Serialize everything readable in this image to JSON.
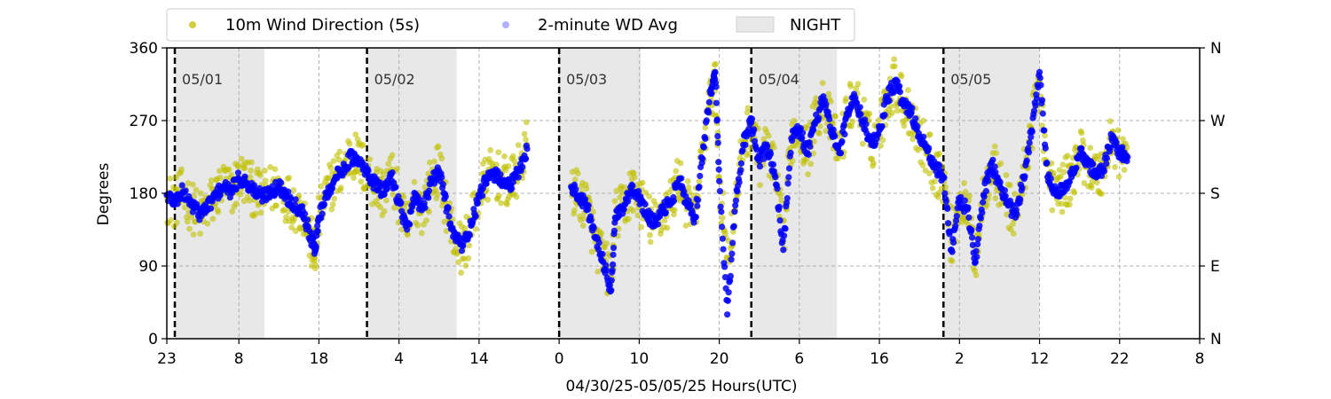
{
  "chart_data": {
    "type": "scatter",
    "xlabel": "04/30/25-05/05/25  Hours(UTC)",
    "ylabel": "Degrees",
    "ylim": [
      0,
      360
    ],
    "y_ticks": [
      0,
      90,
      180,
      270,
      360
    ],
    "y_ticks_right": [
      "N",
      "E",
      "S",
      "W",
      "N"
    ],
    "x_range_hours": [
      0,
      129
    ],
    "x_ticks": [
      {
        "h": 0,
        "label": "23"
      },
      {
        "h": 9,
        "label": "8"
      },
      {
        "h": 19,
        "label": "18"
      },
      {
        "h": 29,
        "label": "4"
      },
      {
        "h": 39,
        "label": "14"
      },
      {
        "h": 49,
        "label": "0"
      },
      {
        "h": 59,
        "label": "10"
      },
      {
        "h": 69,
        "label": "20"
      },
      {
        "h": 79,
        "label": "6"
      },
      {
        "h": 89,
        "label": "16"
      },
      {
        "h": 99,
        "label": "2"
      },
      {
        "h": 109,
        "label": "12"
      },
      {
        "h": 119,
        "label": "22"
      },
      {
        "h": 129,
        "label": "8"
      }
    ],
    "grid": true,
    "legend_position": "top",
    "day_markers": [
      {
        "h": 1,
        "label": "05/01"
      },
      {
        "h": 25,
        "label": "05/02"
      },
      {
        "h": 49,
        "label": "05/03"
      },
      {
        "h": 73,
        "label": "05/04"
      },
      {
        "h": 97,
        "label": "05/05"
      }
    ],
    "night_periods": [
      [
        1,
        12.2
      ],
      [
        25,
        36.2
      ],
      [
        49,
        59.2
      ],
      [
        73,
        83.7
      ],
      [
        97,
        109
      ]
    ],
    "series": [
      {
        "name": "10m Wind Direction (5s)",
        "color": "#bfbf00",
        "marker": "circle",
        "x": [
          0,
          1,
          2,
          3,
          4,
          5,
          6,
          7,
          8,
          9,
          10,
          11,
          12,
          13,
          14,
          15,
          16,
          17,
          18,
          18.5,
          19,
          20,
          21,
          22,
          23,
          24,
          25,
          26,
          27,
          28,
          29,
          30,
          31,
          32,
          33,
          34,
          35,
          36,
          37,
          38,
          39,
          40,
          41,
          42,
          43,
          44,
          45,
          50.5,
          51.5,
          52.5,
          53.5,
          54.5,
          55.5,
          56,
          57,
          58,
          59,
          60,
          61,
          62,
          63,
          64,
          65,
          66,
          67,
          68,
          68.5,
          69,
          70,
          71,
          72,
          73,
          74,
          75,
          76,
          77,
          78,
          79,
          80,
          81,
          82,
          83,
          84,
          85,
          86,
          87,
          88,
          89,
          90,
          91,
          92,
          93,
          94,
          95,
          96,
          97,
          98,
          99,
          100,
          101,
          102,
          103,
          104,
          105,
          106,
          107,
          108,
          109,
          110,
          111,
          112,
          113,
          114,
          115,
          116,
          117,
          118,
          119,
          120
        ],
        "values": [
          175,
          168,
          180,
          165,
          150,
          160,
          175,
          190,
          180,
          200,
          195,
          180,
          175,
          185,
          190,
          175,
          165,
          160,
          120,
          100,
          150,
          180,
          200,
          210,
          230,
          220,
          205,
          190,
          180,
          205,
          170,
          130,
          175,
          160,
          195,
          210,
          160,
          120,
          110,
          140,
          175,
          200,
          205,
          195,
          190,
          210,
          240,
          190,
          175,
          165,
          120,
          100,
          70,
          150,
          160,
          185,
          175,
          150,
          140,
          160,
          170,
          200,
          165,
          150,
          240,
          300,
          320,
          200,
          100,
          160,
          240,
          270,
          220,
          240,
          200,
          120,
          250,
          260,
          230,
          270,
          300,
          260,
          230,
          280,
          300,
          270,
          240,
          260,
          300,
          320,
          290,
          280,
          250,
          230,
          210,
          200,
          120,
          170,
          160,
          100,
          180,
          220,
          190,
          170,
          150,
          200,
          260,
          320,
          200,
          180,
          190,
          200,
          230,
          220,
          200,
          210,
          250,
          230,
          225
        ]
      },
      {
        "name": "2-minute WD Avg",
        "color": "#0000ff",
        "marker": "circle",
        "x": [
          0,
          1,
          2,
          3,
          4,
          5,
          6,
          7,
          8,
          9,
          10,
          11,
          12,
          13,
          14,
          15,
          16,
          17,
          18,
          18.5,
          19,
          20,
          21,
          22,
          23,
          24,
          25,
          26,
          27,
          28,
          29,
          30,
          31,
          32,
          33,
          34,
          35,
          36,
          37,
          38,
          39,
          40,
          41,
          42,
          43,
          44,
          45,
          50.5,
          51.5,
          52.5,
          53.5,
          54.5,
          55.5,
          56,
          57,
          58,
          59,
          60,
          61,
          62,
          63,
          64,
          65,
          66,
          67,
          68,
          68.5,
          69,
          70,
          71,
          72,
          73,
          74,
          75,
          76,
          77,
          78,
          79,
          80,
          81,
          82,
          83,
          84,
          85,
          86,
          87,
          88,
          89,
          90,
          91,
          92,
          93,
          94,
          95,
          96,
          97,
          98,
          99,
          100,
          101,
          102,
          103,
          104,
          105,
          106,
          107,
          108,
          109,
          110,
          111,
          112,
          113,
          114,
          115,
          116,
          117,
          118,
          119,
          120
        ],
        "values": [
          178,
          170,
          182,
          168,
          155,
          162,
          176,
          188,
          182,
          198,
          193,
          182,
          176,
          184,
          188,
          176,
          166,
          158,
          125,
          110,
          150,
          180,
          198,
          210,
          225,
          218,
          205,
          192,
          180,
          203,
          170,
          135,
          175,
          162,
          192,
          208,
          162,
          125,
          115,
          140,
          175,
          198,
          203,
          195,
          190,
          208,
          235,
          188,
          175,
          165,
          125,
          95,
          60,
          150,
          160,
          183,
          175,
          152,
          142,
          160,
          170,
          198,
          165,
          150,
          238,
          310,
          330,
          195,
          30,
          165,
          240,
          268,
          220,
          238,
          200,
          110,
          248,
          258,
          230,
          268,
          300,
          258,
          230,
          278,
          298,
          268,
          240,
          258,
          298,
          318,
          290,
          280,
          250,
          232,
          212,
          200,
          110,
          170,
          160,
          95,
          178,
          218,
          190,
          170,
          150,
          200,
          258,
          330,
          200,
          180,
          190,
          200,
          228,
          222,
          202,
          210,
          248,
          230,
          225
        ]
      }
    ]
  }
}
